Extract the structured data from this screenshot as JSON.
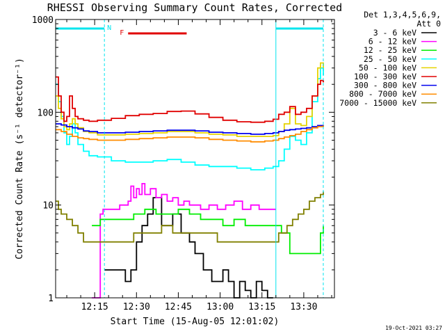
{
  "chart_data": {
    "type": "line",
    "title": "RHESSI Observing Summary Count Rates, Corrected",
    "xlabel": "Start Time (15-Aug-05 12:01:02)",
    "ylabel": "Corrected Count Rate (s⁻¹ detector⁻¹)",
    "y_scale": "log",
    "ylim": [
      1,
      1000
    ],
    "xlim_minutes": [
      0,
      100
    ],
    "x_tick_labels": [
      "12:15",
      "12:30",
      "12:45",
      "13:00",
      "13:15",
      "13:30"
    ],
    "x_ticks_minutes": [
      14,
      29,
      44,
      59,
      74,
      89
    ],
    "y_tick_labels": [
      "1",
      "10",
      "100",
      "1000"
    ],
    "y_ticks": [
      1,
      10,
      100,
      1000
    ],
    "legend_header": [
      "Det 1,3,4,5,6,9,",
      "Att 0"
    ],
    "legend_position": "right",
    "footer_timestamp": "19-Oct-2021 03:27",
    "flags": [
      {
        "label": "N",
        "color": "#00e5ee",
        "intervals_minutes": [
          [
            0,
            17.5
          ],
          [
            79,
            96
          ]
        ]
      },
      {
        "label": "F",
        "color": "#e00000",
        "intervals_minutes": [
          [
            26,
            47
          ]
        ]
      }
    ],
    "vlines_minutes": [
      17.5,
      79,
      96
    ],
    "series": [
      {
        "name": "3 - 6 keV",
        "color": "#000000",
        "x": [
          0,
          16,
          17.5,
          22,
          25,
          27,
          29,
          31,
          33,
          35,
          38,
          42,
          45,
          48,
          50,
          53,
          56,
          58,
          60,
          62,
          64,
          66,
          68,
          70,
          72,
          74,
          76,
          78,
          79
        ],
        "y": [
          null,
          null,
          2,
          2,
          1.5,
          2,
          4,
          6,
          8,
          12,
          6,
          8,
          5,
          4,
          3,
          2,
          1.5,
          1.5,
          2,
          1.5,
          1,
          1.5,
          1.2,
          1,
          1.5,
          1.2,
          1,
          1,
          null
        ]
      },
      {
        "name": "6 - 12 keV",
        "color": "#ff00ff",
        "x": [
          0,
          13,
          14,
          15,
          16,
          17,
          18,
          20,
          23,
          26,
          27,
          28,
          29,
          30,
          31,
          32,
          34,
          36,
          38,
          40,
          42,
          44,
          46,
          48,
          50,
          52,
          55,
          58,
          61,
          64,
          67,
          70,
          73,
          76,
          79
        ],
        "y": [
          null,
          1,
          1,
          1,
          8,
          9,
          9,
          9,
          10,
          11,
          16,
          12,
          15,
          13,
          17,
          13,
          15,
          12,
          13,
          11,
          12,
          10,
          11,
          10,
          10,
          9,
          10,
          9,
          10,
          11,
          9,
          10,
          9,
          9,
          9
        ]
      },
      {
        "name": "12 - 25 keV",
        "color": "#00ee00",
        "x": [
          0,
          13,
          16,
          20,
          24,
          28,
          32,
          36,
          40,
          44,
          48,
          52,
          56,
          60,
          64,
          68,
          72,
          76,
          79,
          81,
          84,
          86,
          88,
          90,
          92,
          94,
          95,
          96
        ],
        "y": [
          null,
          6,
          7,
          7,
          7,
          8,
          9,
          8,
          8,
          9,
          8,
          7,
          7,
          6,
          7,
          6,
          6,
          6,
          6,
          5,
          3,
          3,
          3,
          3,
          3,
          3,
          5,
          6
        ]
      },
      {
        "name": "25 - 50 keV",
        "color": "#00ffff",
        "x": [
          0,
          1,
          2,
          3,
          4,
          5,
          6,
          7,
          8,
          10,
          12,
          15,
          20,
          25,
          30,
          35,
          40,
          45,
          50,
          55,
          60,
          65,
          70,
          75,
          78,
          80,
          82,
          84,
          86,
          88,
          90,
          92,
          94,
          95,
          96
        ],
        "y": [
          200,
          130,
          90,
          60,
          45,
          55,
          75,
          60,
          45,
          38,
          34,
          33,
          30,
          29,
          29,
          30,
          31,
          29,
          27,
          26,
          26,
          25,
          24,
          25,
          26,
          30,
          40,
          55,
          50,
          45,
          60,
          130,
          230,
          300,
          250
        ]
      },
      {
        "name": "50 - 100 keV",
        "color": "#e6d300",
        "x": [
          0,
          1,
          2,
          3,
          4,
          5,
          6,
          7,
          8,
          10,
          12,
          15,
          20,
          25,
          30,
          35,
          40,
          45,
          50,
          55,
          60,
          65,
          70,
          75,
          78,
          80,
          82,
          84,
          86,
          88,
          90,
          92,
          94,
          95,
          96
        ],
        "y": [
          150,
          110,
          85,
          70,
          65,
          75,
          85,
          75,
          68,
          62,
          60,
          57,
          57,
          58,
          59,
          60,
          62,
          62,
          60,
          58,
          57,
          55,
          55,
          55,
          56,
          62,
          75,
          110,
          75,
          72,
          90,
          150,
          300,
          340,
          300
        ]
      },
      {
        "name": "100 - 300 keV",
        "color": "#e00000",
        "x": [
          0,
          1,
          2,
          3,
          4,
          5,
          6,
          7,
          8,
          10,
          12,
          15,
          20,
          25,
          30,
          35,
          40,
          45,
          50,
          55,
          60,
          65,
          70,
          75,
          78,
          80,
          82,
          84,
          86,
          88,
          90,
          92,
          94,
          95,
          96
        ],
        "y": [
          240,
          150,
          100,
          80,
          90,
          150,
          110,
          90,
          85,
          82,
          80,
          82,
          86,
          92,
          95,
          97,
          102,
          103,
          96,
          88,
          82,
          79,
          78,
          80,
          84,
          95,
          100,
          115,
          95,
          100,
          110,
          150,
          200,
          220,
          210
        ]
      },
      {
        "name": "300 - 800 keV",
        "color": "#0000ee",
        "x": [
          0,
          2,
          4,
          6,
          8,
          10,
          12,
          15,
          20,
          25,
          30,
          35,
          40,
          45,
          50,
          55,
          60,
          65,
          70,
          75,
          78,
          80,
          82,
          84,
          86,
          88,
          90,
          92,
          94,
          96
        ],
        "y": [
          75,
          73,
          70,
          68,
          66,
          63,
          62,
          60,
          60,
          61,
          62,
          63,
          64,
          64,
          63,
          61,
          60,
          59,
          58,
          59,
          60,
          62,
          64,
          65,
          66,
          67,
          68,
          70,
          72,
          73
        ]
      },
      {
        "name": "800 - 7000 keV",
        "color": "#ff8c00",
        "x": [
          0,
          2,
          4,
          6,
          8,
          10,
          12,
          15,
          20,
          25,
          30,
          35,
          40,
          45,
          50,
          55,
          60,
          65,
          70,
          75,
          78,
          80,
          82,
          84,
          86,
          88,
          90,
          92,
          94,
          96
        ],
        "y": [
          65,
          62,
          58,
          55,
          53,
          52,
          51,
          50,
          50,
          51,
          52,
          53,
          54,
          54,
          53,
          51,
          50,
          49,
          48,
          49,
          50,
          52,
          54,
          56,
          58,
          62,
          65,
          68,
          70,
          72
        ]
      },
      {
        "name": "7000 - 15000 keV",
        "color": "#808000",
        "x": [
          0,
          1,
          2,
          3,
          4,
          6,
          8,
          10,
          12,
          15,
          18,
          20,
          24,
          28,
          30,
          34,
          38,
          42,
          46,
          50,
          54,
          58,
          62,
          66,
          70,
          74,
          78,
          80,
          83,
          85,
          87,
          89,
          91,
          93,
          95,
          96
        ],
        "y": [
          11,
          9,
          8,
          8,
          7,
          6,
          5,
          4,
          4,
          4,
          4,
          4,
          4,
          5,
          5,
          5,
          6,
          5,
          5,
          5,
          5,
          4,
          4,
          4,
          4,
          4,
          4,
          5,
          6,
          7,
          8,
          9,
          11,
          12,
          13,
          14
        ]
      }
    ]
  }
}
